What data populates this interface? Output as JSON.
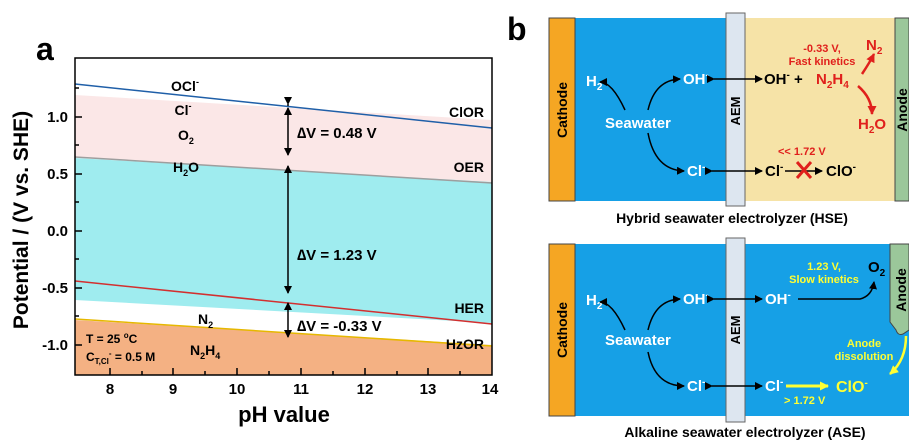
{
  "panel_a": {
    "label": "a",
    "ylabel": "Potential / (V vs. SHE)",
    "xlabel": "pH value",
    "xticks": [
      "8",
      "9",
      "10",
      "11",
      "12",
      "13",
      "14"
    ],
    "yticks": [
      "1.0",
      "0.5",
      "0.0",
      "-0.5",
      "-1.0"
    ],
    "species": {
      "ocl": "OCl",
      "ocl_sup": "-",
      "cl": "Cl",
      "cl_sup": "-",
      "o2": "O",
      "o2_sub": "2",
      "h2o": "H",
      "h2o_sub": "2",
      "h2o_tail": "O",
      "n2": "N",
      "n2_sub": "2",
      "n2h4_a": "N",
      "n2h4_sub1": "2",
      "n2h4_b": "H",
      "n2h4_sub2": "4"
    },
    "reactions": {
      "clor": "ClOR",
      "oer": "OER",
      "her": "HER",
      "hzor": "HzOR"
    },
    "deltas": {
      "d1": "∆V = 0.48 V",
      "d2": "∆V = 1.23 V",
      "d3": "∆V = -0.33 V"
    },
    "conditions": {
      "t_main": "T = 25 ",
      "t_deg": "o",
      "t_unit": "C",
      "c_main": "C",
      "c_sub": "T,Cl",
      "c_sup": "-",
      "c_val": " = 0.5 M"
    },
    "colors": {
      "clor_line": "#1f5fa8",
      "oer_line": "#9e9e9e",
      "her_line": "#d32f2f",
      "hzor_line": "#e6b800",
      "region_top": "#fbe7e7",
      "region_mid": "#9fecef",
      "region_bottom": "#f4b183"
    }
  },
  "chart_data": {
    "type": "line",
    "xlabel": "pH value",
    "ylabel": "Potential / (V vs. SHE)",
    "xlim": [
      7.5,
      14
    ],
    "ylim": [
      -1.2,
      1.45
    ],
    "series": [
      {
        "name": "ClOR",
        "x": [
          7.5,
          14
        ],
        "y": [
          1.27,
          0.89
        ]
      },
      {
        "name": "OER",
        "x": [
          7.5,
          14
        ],
        "y": [
          0.79,
          0.41
        ]
      },
      {
        "name": "HER",
        "x": [
          7.5,
          14
        ],
        "y": [
          -0.44,
          -0.82
        ]
      },
      {
        "name": "HzOR",
        "x": [
          7.5,
          14
        ],
        "y": [
          -0.77,
          -1.15
        ]
      }
    ]
  },
  "panel_b": {
    "label": "b",
    "hse": {
      "caption": "Hybrid seawater electrolyzer (HSE)",
      "cathode": "Cathode",
      "anode": "Anode",
      "membrane": "AEM",
      "h2": "H",
      "h2_sub": "2",
      "seawater": "Seawater",
      "oh": "OH",
      "oh_sup": "-",
      "cl": "Cl",
      "cl_sup": "-",
      "oh_plus": "OH",
      "oh_plus_sup": "-",
      "plus": " + ",
      "n2h4_a": "N",
      "n2h4_sub1": "2",
      "n2h4_b": "H",
      "n2h4_sub2": "4",
      "note1": "-0.33 V,",
      "note2": "Fast kinetics",
      "n2": "N",
      "n2_sub": "2",
      "h2o_a": "H",
      "h2o_sub": "2",
      "h2o_b": "O",
      "cl_note": "<< 1.72 V",
      "clo": "ClO",
      "clo_sup": "-"
    },
    "ase": {
      "caption": "Alkaline seawater electrolyzer (ASE)",
      "cathode": "Cathode",
      "anode": "Anode",
      "membrane": "AEM",
      "h2": "H",
      "h2_sub": "2",
      "seawater": "Seawater",
      "oh": "OH",
      "oh_sup": "-",
      "cl": "Cl",
      "cl_sup": "-",
      "oer1": "1.23 V,",
      "oer2": "Slow kinetics",
      "o2": "O",
      "o2_sub": "2",
      "diss1": "Anode",
      "diss2": "dissolution",
      "clo": "ClO",
      "clo_sup": "-",
      "cl_note": "> 1.72 V"
    },
    "colors": {
      "cathode": "#f5a623",
      "electrolyte": "#16a0e6",
      "anode_hse": "#f6e3a7",
      "anode_ase": "#9bc79a",
      "membrane": "#dde6f0",
      "red": "#e0201c",
      "yellow": "#ffff33"
    }
  }
}
